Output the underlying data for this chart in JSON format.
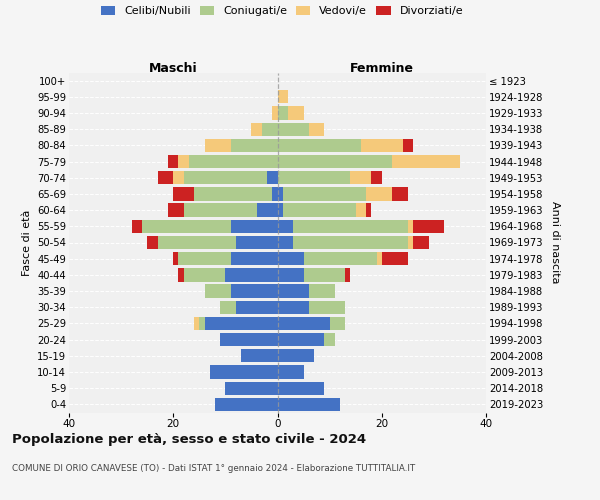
{
  "age_groups": [
    "0-4",
    "5-9",
    "10-14",
    "15-19",
    "20-24",
    "25-29",
    "30-34",
    "35-39",
    "40-44",
    "45-49",
    "50-54",
    "55-59",
    "60-64",
    "65-69",
    "70-74",
    "75-79",
    "80-84",
    "85-89",
    "90-94",
    "95-99",
    "100+"
  ],
  "birth_years": [
    "2019-2023",
    "2014-2018",
    "2009-2013",
    "2004-2008",
    "1999-2003",
    "1994-1998",
    "1989-1993",
    "1984-1988",
    "1979-1983",
    "1974-1978",
    "1969-1973",
    "1964-1968",
    "1959-1963",
    "1954-1958",
    "1949-1953",
    "1944-1948",
    "1939-1943",
    "1934-1938",
    "1929-1933",
    "1924-1928",
    "≤ 1923"
  ],
  "colors": {
    "celibi": "#4472C4",
    "coniugati": "#AECB8E",
    "vedovi": "#F5C97A",
    "divorziati": "#CC2222"
  },
  "males": {
    "celibi": [
      12,
      10,
      13,
      7,
      11,
      14,
      8,
      9,
      10,
      9,
      8,
      9,
      4,
      1,
      2,
      0,
      0,
      0,
      0,
      0,
      0
    ],
    "coniugati": [
      0,
      0,
      0,
      0,
      0,
      1,
      3,
      5,
      8,
      10,
      15,
      17,
      14,
      15,
      16,
      17,
      9,
      3,
      0,
      0,
      0
    ],
    "vedovi": [
      0,
      0,
      0,
      0,
      0,
      1,
      0,
      0,
      0,
      0,
      0,
      0,
      0,
      0,
      2,
      2,
      5,
      2,
      1,
      0,
      0
    ],
    "divorziati": [
      0,
      0,
      0,
      0,
      0,
      0,
      0,
      0,
      1,
      1,
      2,
      2,
      3,
      4,
      3,
      2,
      0,
      0,
      0,
      0,
      0
    ]
  },
  "females": {
    "celibi": [
      12,
      9,
      5,
      7,
      9,
      10,
      6,
      6,
      5,
      5,
      3,
      3,
      1,
      1,
      0,
      0,
      0,
      0,
      0,
      0,
      0
    ],
    "coniugati": [
      0,
      0,
      0,
      0,
      2,
      3,
      7,
      5,
      8,
      14,
      22,
      22,
      14,
      16,
      14,
      22,
      16,
      6,
      2,
      0,
      0
    ],
    "vedovi": [
      0,
      0,
      0,
      0,
      0,
      0,
      0,
      0,
      0,
      1,
      1,
      1,
      2,
      5,
      4,
      13,
      8,
      3,
      3,
      2,
      0
    ],
    "divorziati": [
      0,
      0,
      0,
      0,
      0,
      0,
      0,
      0,
      1,
      5,
      3,
      6,
      1,
      3,
      2,
      0,
      2,
      0,
      0,
      0,
      0
    ]
  },
  "title_main": "Popolazione per età, sesso e stato civile - 2024",
  "title_sub": "COMUNE DI ORIO CANAVESE (TO) - Dati ISTAT 1° gennaio 2024 - Elaborazione TUTTITALIA.IT",
  "xlabel_left": "Maschi",
  "xlabel_right": "Femmine",
  "ylabel_left": "Fasce di età",
  "ylabel_right": "Anni di nascita",
  "xlim": 40,
  "bg_color": "#f0f0f0",
  "fig_color": "#f5f5f5"
}
